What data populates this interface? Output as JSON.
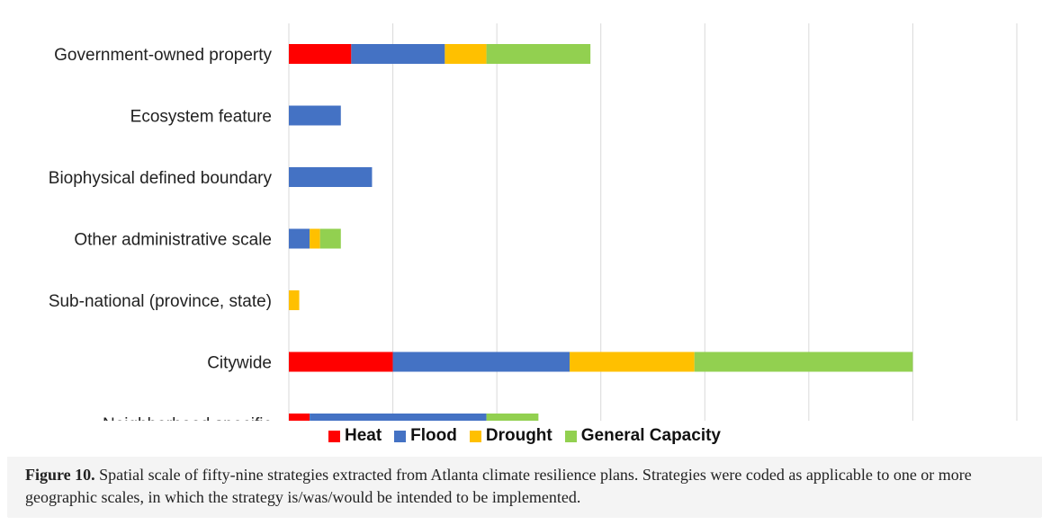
{
  "chart_data": {
    "type": "bar",
    "orientation": "horizontal",
    "stacked": true,
    "categories": [
      "Government-owned property",
      "Ecosystem feature",
      "Biophysical defined boundary",
      "Other administrative scale",
      "Sub-national (province, state)",
      "Citywide",
      "Neighborhood specific"
    ],
    "series": [
      {
        "name": "Heat",
        "color": "#ff0000",
        "values": [
          6,
          0,
          0,
          0,
          0,
          10,
          2
        ]
      },
      {
        "name": "Flood",
        "color": "#4472c4",
        "values": [
          9,
          5,
          8,
          2,
          0,
          17,
          17
        ]
      },
      {
        "name": "Drought",
        "color": "#ffc000",
        "values": [
          4,
          0,
          0,
          1,
          1,
          12,
          0
        ]
      },
      {
        "name": "General Capacity",
        "color": "#92d050",
        "values": [
          10,
          0,
          0,
          2,
          0,
          21,
          5
        ]
      }
    ],
    "xlim": [
      0,
      70
    ],
    "xticks": [
      0,
      10,
      20,
      30,
      40,
      50,
      60,
      70
    ],
    "xlabel": "",
    "ylabel": "",
    "grid": "vertical",
    "legend": "bottom"
  },
  "caption": {
    "label": "Figure 10.",
    "text": " Spatial scale of fifty-nine strategies extracted from Atlanta climate resilience plans. Strategies were coded as applicable to one or more geographic scales, in which the strategy is/was/would be intended to be implemented."
  }
}
